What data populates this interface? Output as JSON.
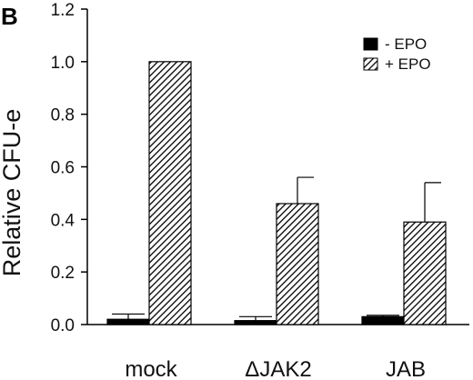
{
  "panel_label": "B",
  "chart_data": {
    "type": "bar",
    "title": "",
    "xlabel": "",
    "ylabel": "Relative CFU-e",
    "ylim": [
      0,
      1.2
    ],
    "yticks": [
      "0.0",
      "0.2",
      "0.4",
      "0.6",
      "0.8",
      "1.0",
      "1.2"
    ],
    "categories": [
      "mock",
      "ΔJAK2",
      "JAB"
    ],
    "series": [
      {
        "name": "- EPO",
        "values": [
          0.02,
          0.015,
          0.03
        ],
        "errors": [
          0.02,
          0.015,
          0.005
        ],
        "fill": "solid",
        "color": "#000000"
      },
      {
        "name": "+ EPO",
        "values": [
          1.0,
          0.46,
          0.39
        ],
        "errors": [
          0.0,
          0.1,
          0.15
        ],
        "fill": "hatched",
        "color": "#000000"
      }
    ],
    "legend_position": "top-right",
    "grid": false
  }
}
